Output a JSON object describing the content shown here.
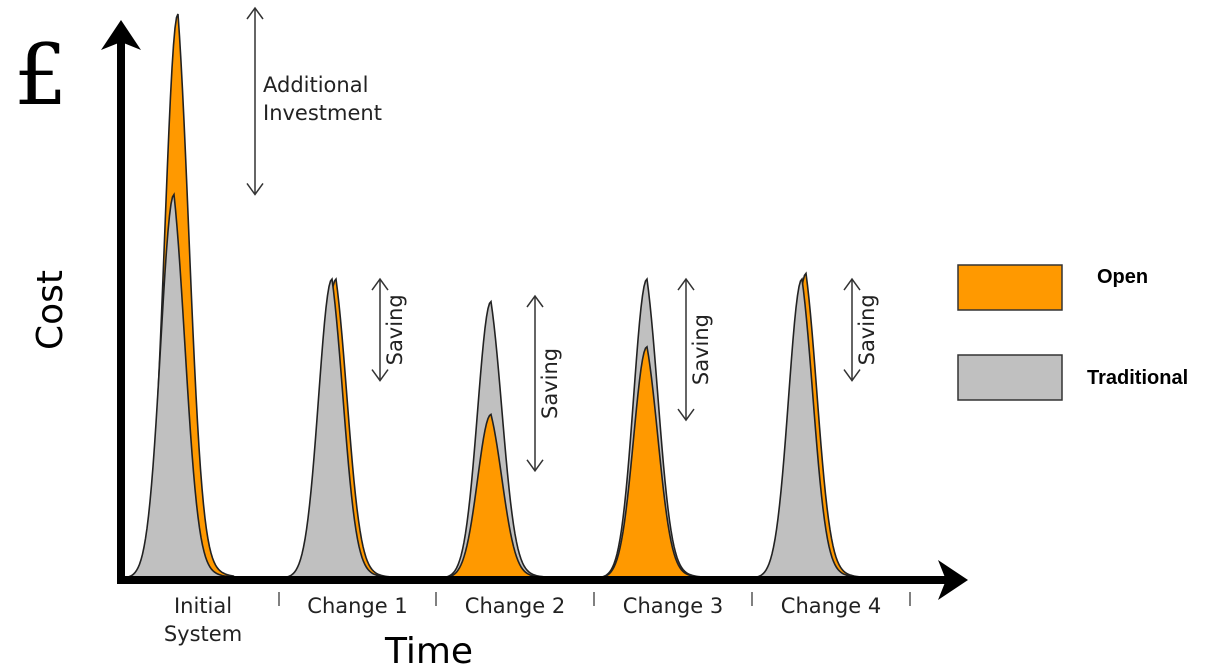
{
  "chart_data": {
    "type": "area",
    "xlabel": "Time",
    "ylabel": "Cost",
    "currency_symbol": "£",
    "categories": [
      "Initial\nSystem",
      "Change 1",
      "Change 2",
      "Change 3",
      "Change 4"
    ],
    "series": [
      {
        "name": "Open",
        "values": [
          100,
          53,
          29,
          41,
          54
        ]
      },
      {
        "name": "Traditional",
        "values": [
          68,
          53,
          49,
          53,
          53
        ]
      }
    ],
    "annotations": [
      {
        "text": "Additional\nInvestment",
        "from_value": 100,
        "to_value": 68,
        "category": "Initial\nSystem"
      },
      {
        "text": "Saving",
        "from_value": 53,
        "to_value": 35,
        "category": "Change 1"
      },
      {
        "text": "Saving",
        "from_value": 50,
        "to_value": 19,
        "category": "Change 2"
      },
      {
        "text": "Saving",
        "from_value": 53,
        "to_value": 28,
        "category": "Change 3"
      },
      {
        "text": "Saving",
        "from_value": 53,
        "to_value": 35,
        "category": "Change 4"
      }
    ],
    "ylim": [
      0,
      100
    ],
    "legend_position": "right",
    "grid": false,
    "colors": {
      "Open": "#ff9900",
      "Traditional": "#c0c0c0"
    }
  }
}
